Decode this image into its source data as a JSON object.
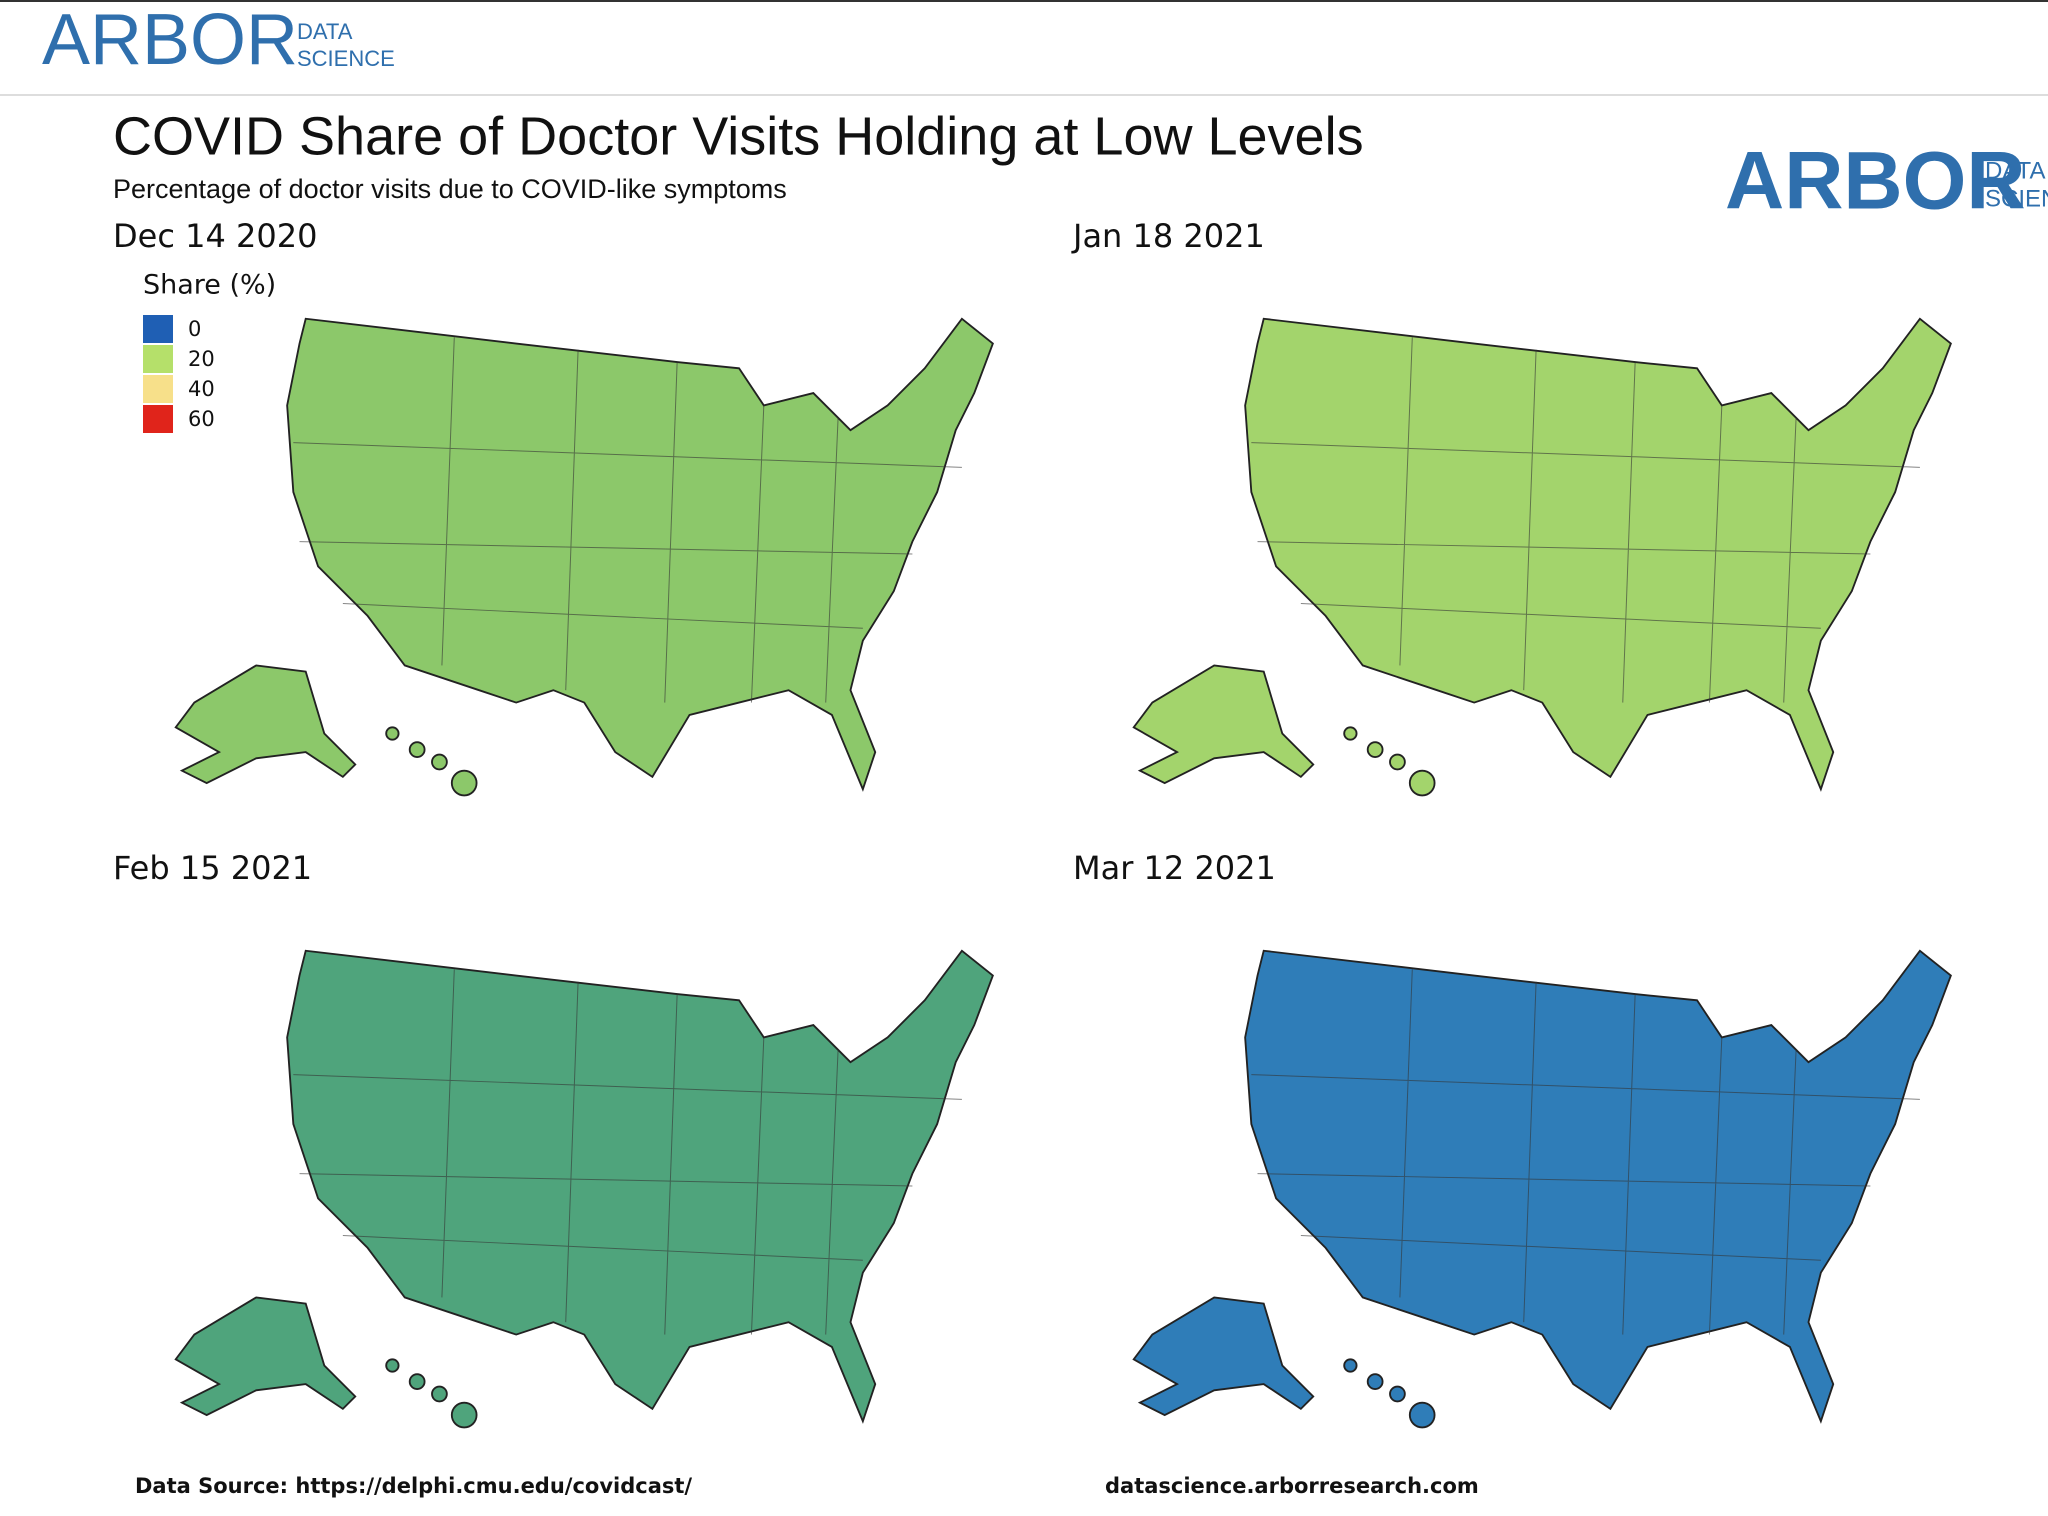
{
  "header": {
    "logo_main": "ARBOR",
    "logo_sub": [
      "DATA",
      "SCIENCE"
    ]
  },
  "title": "COVID Share of Doctor Visits Holding at Low Levels",
  "subtitle": "Percentage of doctor visits due to COVID-like symptoms",
  "panels": [
    {
      "label": "Dec 14 2020"
    },
    {
      "label": "Jan 18 2021"
    },
    {
      "label": "Feb 15 2021"
    },
    {
      "label": "Mar 12 2021"
    }
  ],
  "legend": {
    "title": "Share (%)",
    "ticks": [
      0,
      20,
      40,
      60
    ],
    "colors": [
      "#1f5fb4",
      "#b5e06a",
      "#f7e08a",
      "#e0241b"
    ]
  },
  "footer": {
    "source": "Data Source: https://delphi.cmu.edu/covidcast/",
    "url": "datascience.arborresearch.com"
  }
}
